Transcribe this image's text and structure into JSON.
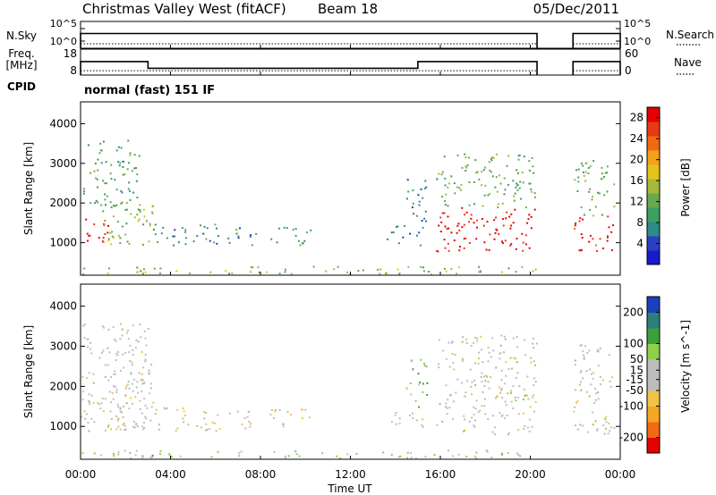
{
  "header": {
    "station": "Christmas Valley West (fitACF)",
    "beam": "Beam 18",
    "date": "05/Dec/2011"
  },
  "panels": {
    "nsky": {
      "label": "N.Sky",
      "right_label": "N.Search",
      "left_top": "10^5",
      "left_bottom": "10^0",
      "right_top": "10^5",
      "right_bottom": "10^0"
    },
    "freq": {
      "label_line1": "Freq.",
      "label_line2": "[MHz]",
      "right_label": "Nave",
      "left_top": "18",
      "left_bottom": "8",
      "right_top": "60",
      "right_bottom": "0"
    },
    "cpid": {
      "label": "CPID",
      "text": "normal (fast) 151 IF"
    }
  },
  "colors": {
    "power_scale": [
      "#1a1acd",
      "#2a3fc2",
      "#2f8a8a",
      "#3ba060",
      "#6aa84f",
      "#a6b83a",
      "#e7c21a",
      "#f2a21a",
      "#f06a14",
      "#e83a12",
      "#e60000"
    ],
    "velocity_scale": [
      "#e60000",
      "#f06a14",
      "#f5a623",
      "#f0c24a",
      "#bdbdbd",
      "#bdbdbd",
      "#8fcf4a",
      "#3ba03b",
      "#2e7d7d",
      "#1a3fbf"
    ]
  },
  "chart_data": [
    {
      "type": "heatmap",
      "name": "power",
      "ylabel": "Slant Range [km]",
      "yticks": [
        "1000",
        "2000",
        "3000",
        "4000"
      ],
      "ylim": [
        180,
        4550
      ],
      "colorbar": {
        "label": "Power [dB]",
        "ticks": [
          "4",
          "8",
          "12",
          "16",
          "20",
          "24",
          "28"
        ],
        "range": [
          0,
          30
        ]
      },
      "regions": [
        {
          "t0": 0.0,
          "t1": 1.2,
          "r0": 900,
          "r1": 1700,
          "level": 27
        },
        {
          "t0": 0.1,
          "t1": 2.6,
          "r0": 1800,
          "r1": 3600,
          "level": 10
        },
        {
          "t0": 1.2,
          "t1": 3.2,
          "r0": 950,
          "r1": 2200,
          "level": 14
        },
        {
          "t0": 3.2,
          "t1": 6.2,
          "r0": 900,
          "r1": 1500,
          "level": 8
        },
        {
          "t0": 6.5,
          "t1": 7.8,
          "r0": 950,
          "r1": 1450,
          "level": 8
        },
        {
          "t0": 8.4,
          "t1": 10.2,
          "r0": 950,
          "r1": 1450,
          "level": 10
        },
        {
          "t0": 13.6,
          "t1": 15.2,
          "r0": 950,
          "r1": 1450,
          "level": 6
        },
        {
          "t0": 14.4,
          "t1": 15.4,
          "r0": 1500,
          "r1": 2700,
          "level": 6
        },
        {
          "t0": 15.8,
          "t1": 20.3,
          "r0": 800,
          "r1": 1900,
          "level": 29
        },
        {
          "t0": 15.8,
          "t1": 20.3,
          "r0": 1900,
          "r1": 3300,
          "level": 12
        },
        {
          "t0": 21.9,
          "t1": 23.7,
          "r0": 800,
          "r1": 1700,
          "level": 28
        },
        {
          "t0": 21.9,
          "t1": 23.7,
          "r0": 1700,
          "r1": 3100,
          "level": 12
        },
        {
          "t0": 0.0,
          "t1": 20.3,
          "r0": 220,
          "r1": 420,
          "level": 14
        }
      ]
    },
    {
      "type": "heatmap",
      "name": "velocity",
      "ylabel": "Slant Range [km]",
      "yticks": [
        "1000",
        "2000",
        "3000",
        "4000"
      ],
      "ylim": [
        180,
        4550
      ],
      "colorbar": {
        "label": "Velocity [m s^-1]",
        "ticks": [
          "200",
          "100",
          "50",
          "15",
          "-15",
          "-50",
          "-100",
          "-200"
        ],
        "range": [
          -250,
          250
        ]
      },
      "regions": [
        {
          "t0": 0.0,
          "t1": 3.2,
          "r0": 900,
          "r1": 3600,
          "level": 0
        },
        {
          "t0": 1.2,
          "t1": 3.2,
          "r0": 950,
          "r1": 2200,
          "level": -30
        },
        {
          "t0": 3.2,
          "t1": 6.2,
          "r0": 900,
          "r1": 1500,
          "level": -40
        },
        {
          "t0": 6.5,
          "t1": 7.8,
          "r0": 950,
          "r1": 1450,
          "level": -40
        },
        {
          "t0": 8.4,
          "t1": 10.2,
          "r0": 950,
          "r1": 1450,
          "level": -40
        },
        {
          "t0": 13.6,
          "t1": 15.2,
          "r0": 950,
          "r1": 1450,
          "level": -40
        },
        {
          "t0": 14.4,
          "t1": 15.4,
          "r0": 1500,
          "r1": 2700,
          "level": 70
        },
        {
          "t0": 15.8,
          "t1": 20.3,
          "r0": 800,
          "r1": 1900,
          "level": 0
        },
        {
          "t0": 15.8,
          "t1": 20.3,
          "r0": 1900,
          "r1": 3300,
          "level": 0
        },
        {
          "t0": 21.9,
          "t1": 23.7,
          "r0": 800,
          "r1": 1700,
          "level": 0
        },
        {
          "t0": 21.9,
          "t1": 23.7,
          "r0": 1700,
          "r1": 3100,
          "level": 0
        },
        {
          "t0": 0.0,
          "t1": 20.3,
          "r0": 220,
          "r1": 420,
          "level": 40
        }
      ]
    }
  ],
  "time_axis": {
    "xlabel": "Time UT",
    "ticks": [
      "00:00",
      "04:00",
      "08:00",
      "12:00",
      "16:00",
      "20:00",
      "00:00"
    ],
    "range_hours": [
      0,
      24
    ]
  },
  "series": {
    "nsky": [
      {
        "t0": 0.0,
        "t1": 20.3,
        "value": 0.55
      },
      {
        "t0": 21.9,
        "t1": 24.0,
        "value": 0.55
      }
    ],
    "freq_mhz": [
      {
        "t0": 0.0,
        "t1": 3.0,
        "value": 13.2
      },
      {
        "t0": 3.0,
        "t1": 15.0,
        "value": 10.6
      },
      {
        "t0": 15.0,
        "t1": 20.3,
        "value": 13.2
      },
      {
        "t0": 21.9,
        "t1": 24.0,
        "value": 13.2
      }
    ],
    "nave": [
      {
        "t0": 0.0,
        "t1": 20.3,
        "value": 10
      },
      {
        "t0": 21.9,
        "t1": 24.0,
        "value": 10
      }
    ]
  }
}
